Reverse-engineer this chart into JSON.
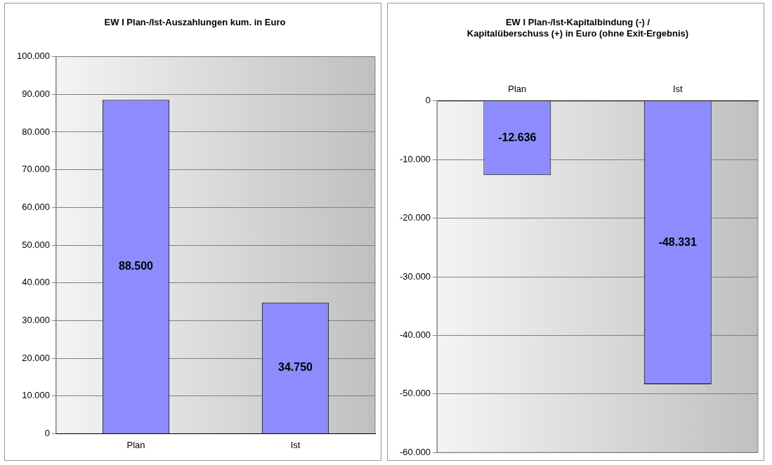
{
  "chart_data": [
    {
      "type": "bar",
      "title": "EW I Plan-/Ist-Auszahlungen kum. in Euro",
      "categories": [
        "Plan",
        "Ist"
      ],
      "values": [
        88500,
        34750
      ],
      "value_labels": [
        "88.500",
        "34.750"
      ],
      "color": "#8c8cff",
      "ylim": [
        0,
        100000
      ],
      "yticks": [
        0,
        {
          "value": 10000,
          "label": "10.000"
        },
        {
          "value": 20000,
          "label": "20.000"
        },
        {
          "value": 30000,
          "label": "30.000"
        },
        {
          "value": 40000,
          "label": "40.000"
        },
        {
          "value": 50000,
          "label": "50.000"
        },
        {
          "value": 60000,
          "label": "60.000"
        },
        {
          "value": 70000,
          "label": "70.000"
        },
        {
          "value": 80000,
          "label": "80.000"
        },
        {
          "value": 90000,
          "label": "90.000"
        },
        {
          "value": 100000,
          "label": "100.000"
        }
      ],
      "grid": "y",
      "legend": false
    },
    {
      "type": "bar",
      "title": [
        "EW I Plan-/Ist-Kapitalbindung (-) /",
        "Kapitalüberschuss (+) in Euro (ohne Exit-Ergebnis)"
      ],
      "categories": [
        "Plan",
        "Ist"
      ],
      "values": [
        -12636,
        -48331
      ],
      "value_labels": [
        "-12.636",
        "-48.331"
      ],
      "color": "#8c8cff",
      "ylim": [
        -60000,
        0
      ],
      "yticks": [
        {
          "value": -60000,
          "label": "-60.000"
        },
        {
          "value": -50000,
          "label": "-50.000"
        },
        {
          "value": -40000,
          "label": "-40.000"
        },
        {
          "value": -30000,
          "label": "-30.000"
        },
        {
          "value": -20000,
          "label": "-20.000"
        },
        {
          "value": -10000,
          "label": "-10.000"
        },
        0
      ],
      "grid": "y",
      "legend": false
    }
  ]
}
